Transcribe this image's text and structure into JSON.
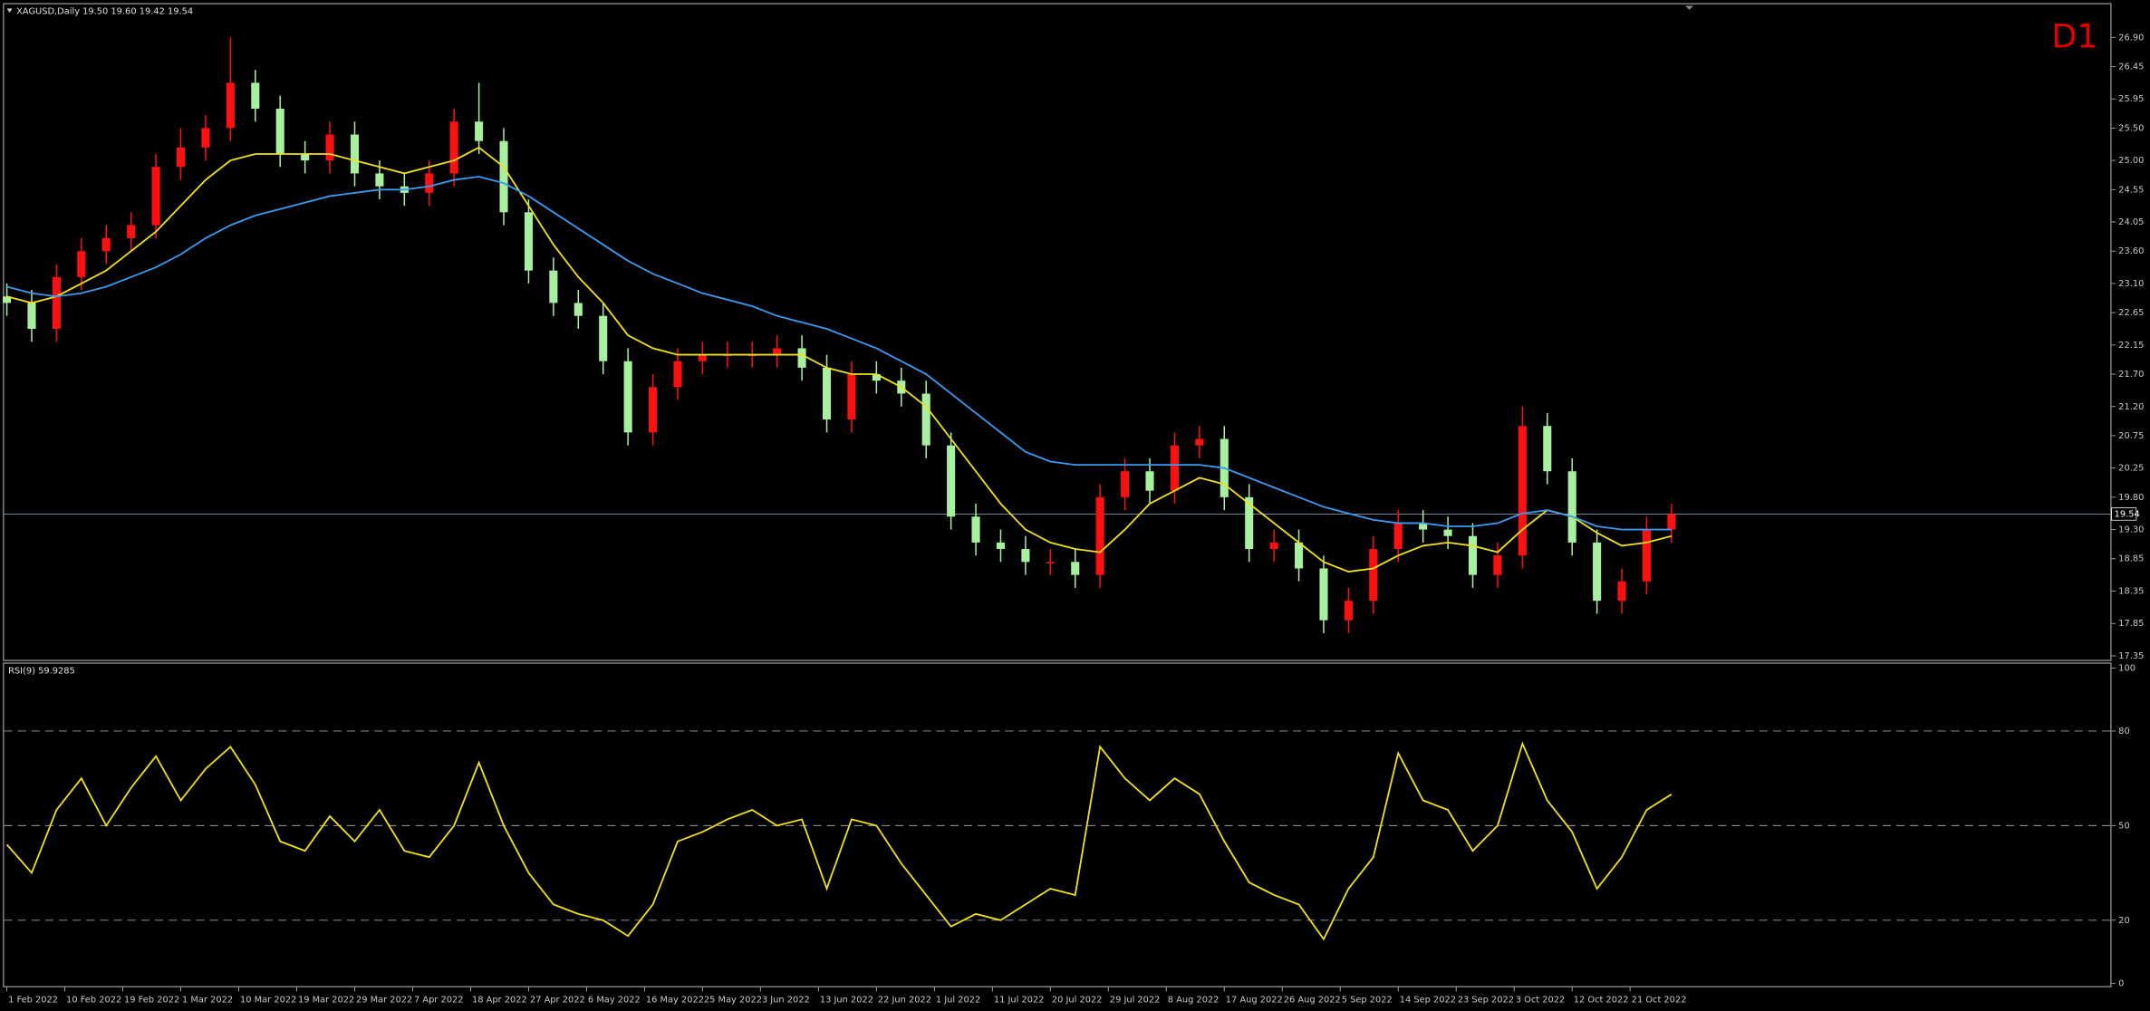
{
  "chart_data": [
    {
      "type": "candlestick",
      "title": "XAGUSD,Daily  19.50 19.60 19.42 19.54",
      "annotation": "D1",
      "xlim": [
        -0.8,
        253
      ],
      "xticks": [
        {
          "value": 0,
          "label": "1 Feb 2022"
        },
        {
          "value": 7,
          "label": "10 Feb 2022"
        },
        {
          "value": 14,
          "label": "19 Feb 2022"
        },
        {
          "value": 21,
          "label": "1 Mar 2022"
        },
        {
          "value": 28,
          "label": "10 Mar 2022"
        },
        {
          "value": 35,
          "label": "19 Mar 2022"
        },
        {
          "value": 42,
          "label": "29 Mar 2022"
        },
        {
          "value": 49,
          "label": "7 Apr 2022"
        },
        {
          "value": 56,
          "label": "18 Apr 2022"
        },
        {
          "value": 63,
          "label": "27 Apr 2022"
        },
        {
          "value": 70,
          "label": "6 May 2022"
        },
        {
          "value": 77,
          "label": "16 May 2022"
        },
        {
          "value": 84,
          "label": "25 May 2022"
        },
        {
          "value": 91,
          "label": "3 Jun 2022"
        },
        {
          "value": 98,
          "label": "13 Jun 2022"
        },
        {
          "value": 105,
          "label": "22 Jun 2022"
        },
        {
          "value": 112,
          "label": "1 Jul 2022"
        },
        {
          "value": 119,
          "label": "11 Jul 2022"
        },
        {
          "value": 126,
          "label": "20 Jul 2022"
        },
        {
          "value": 133,
          "label": "29 Jul 2022"
        },
        {
          "value": 140,
          "label": "8 Aug 2022"
        },
        {
          "value": 147,
          "label": "17 Aug 2022"
        },
        {
          "value": 154,
          "label": "26 Aug 2022"
        },
        {
          "value": 161,
          "label": "5 Sep 2022"
        },
        {
          "value": 168,
          "label": "14 Sep 2022"
        },
        {
          "value": 175,
          "label": "23 Sep 2022"
        },
        {
          "value": 182,
          "label": "3 Oct 2022"
        },
        {
          "value": 189,
          "label": "12 Oct 2022"
        },
        {
          "value": 196,
          "label": "21 Oct 2022"
        }
      ],
      "ylim": [
        17.29,
        27.41
      ],
      "yticks": [
        {
          "value": 26.9,
          "label": "26.90"
        },
        26.45,
        25.95,
        {
          "value": 25.5,
          "label": "25.50"
        },
        {
          "value": 25.0,
          "label": "25.00"
        },
        24.55,
        24.05,
        {
          "value": 23.6,
          "label": "23.60"
        },
        {
          "value": 23.1,
          "label": "23.10"
        },
        22.65,
        22.15,
        {
          "value": 21.7,
          "label": "21.70"
        },
        {
          "value": 21.2,
          "label": "21.20"
        },
        20.75,
        20.25,
        {
          "value": 19.8,
          "label": "19.80"
        },
        {
          "value": 19.3,
          "label": "19.30"
        },
        18.85,
        18.35,
        17.85,
        17.35
      ],
      "last_price": 19.54,
      "up_color": "#ff1010",
      "down_color": "#a8f0a0",
      "x": [
        0,
        3,
        6,
        9,
        12,
        15,
        18,
        21,
        24,
        27,
        30,
        33,
        36,
        39,
        42,
        45,
        48,
        51,
        54,
        57,
        60,
        63,
        66,
        69,
        72,
        75,
        78,
        81,
        84,
        87,
        90,
        93,
        96,
        99,
        102,
        105,
        108,
        111,
        114,
        117,
        120,
        123,
        126,
        129,
        132,
        135,
        138,
        141,
        144,
        147,
        150,
        153,
        156,
        159,
        162,
        165,
        168,
        171,
        174,
        177,
        180,
        183,
        186,
        189,
        192,
        195,
        198,
        201
      ],
      "open": [
        22.9,
        22.8,
        22.4,
        23.2,
        23.6,
        23.8,
        24.0,
        24.9,
        25.2,
        25.5,
        26.2,
        25.8,
        25.1,
        25.0,
        25.4,
        24.8,
        24.6,
        24.5,
        24.8,
        25.6,
        25.3,
        24.2,
        23.3,
        22.8,
        22.6,
        21.9,
        20.8,
        21.5,
        21.9,
        22.0,
        22.0,
        22.0,
        22.1,
        21.8,
        21.0,
        21.7,
        21.6,
        21.4,
        20.6,
        19.5,
        19.1,
        19.0,
        18.8,
        18.8,
        18.6,
        19.8,
        20.2,
        19.9,
        20.6,
        20.7,
        19.8,
        19.0,
        19.1,
        18.7,
        17.9,
        18.2,
        19.0,
        19.4,
        19.3,
        19.2,
        18.6,
        18.9,
        20.9,
        20.2,
        19.1,
        18.2,
        18.5,
        19.3
      ],
      "high": [
        23.1,
        23.0,
        23.4,
        23.8,
        24.0,
        24.2,
        25.1,
        25.5,
        25.7,
        26.9,
        26.4,
        26.0,
        25.3,
        25.6,
        25.6,
        25.0,
        24.8,
        25.0,
        25.8,
        26.2,
        25.5,
        24.4,
        23.5,
        23.0,
        22.8,
        22.1,
        21.7,
        22.1,
        22.2,
        22.2,
        22.2,
        22.3,
        22.3,
        22.0,
        21.9,
        21.9,
        21.8,
        21.6,
        20.8,
        19.7,
        19.3,
        19.2,
        19.0,
        19.0,
        20.0,
        20.4,
        20.4,
        20.8,
        20.9,
        20.9,
        20.0,
        19.3,
        19.3,
        18.9,
        18.4,
        19.2,
        19.6,
        19.6,
        19.5,
        19.4,
        19.1,
        21.2,
        21.1,
        20.4,
        19.3,
        18.7,
        19.5,
        19.7
      ],
      "low": [
        22.6,
        22.2,
        22.2,
        23.0,
        23.4,
        23.6,
        23.8,
        24.7,
        25.0,
        25.3,
        25.6,
        24.9,
        24.8,
        24.8,
        24.6,
        24.4,
        24.3,
        24.3,
        24.6,
        25.1,
        24.0,
        23.1,
        22.6,
        22.4,
        21.7,
        20.6,
        20.6,
        21.3,
        21.7,
        21.8,
        21.8,
        21.8,
        21.6,
        20.8,
        20.8,
        21.4,
        21.2,
        20.4,
        19.3,
        18.9,
        18.8,
        18.6,
        18.6,
        18.4,
        18.4,
        19.6,
        19.7,
        19.7,
        20.4,
        19.6,
        18.8,
        18.8,
        18.5,
        17.7,
        17.7,
        18.0,
        18.8,
        19.1,
        19.0,
        18.4,
        18.4,
        18.7,
        20.0,
        18.9,
        18.0,
        18.0,
        18.3,
        19.1
      ],
      "close": [
        22.8,
        22.4,
        23.2,
        23.6,
        23.8,
        24.0,
        24.9,
        25.2,
        25.5,
        26.2,
        25.8,
        25.1,
        25.0,
        25.4,
        24.8,
        24.6,
        24.5,
        24.8,
        25.6,
        25.3,
        24.2,
        23.3,
        22.8,
        22.6,
        21.9,
        20.8,
        21.5,
        21.9,
        22.0,
        22.0,
        22.0,
        22.1,
        21.8,
        21.0,
        21.7,
        21.6,
        21.4,
        20.6,
        19.5,
        19.1,
        19.0,
        18.8,
        18.8,
        18.6,
        19.8,
        20.2,
        19.9,
        20.6,
        20.7,
        19.8,
        19.0,
        19.1,
        18.7,
        17.9,
        18.2,
        19.0,
        19.4,
        19.3,
        19.2,
        18.6,
        18.9,
        20.9,
        20.2,
        19.1,
        18.2,
        18.5,
        19.3,
        19.54
      ],
      "series": [
        {
          "color": "#f0e020",
          "values": [
            22.9,
            22.8,
            22.9,
            23.1,
            23.3,
            23.6,
            23.9,
            24.3,
            24.7,
            25.0,
            25.1,
            25.1,
            25.1,
            25.1,
            25.0,
            24.9,
            24.8,
            24.9,
            25.0,
            25.2,
            24.9,
            24.3,
            23.7,
            23.2,
            22.8,
            22.3,
            22.1,
            22.0,
            22.0,
            22.0,
            22.0,
            22.0,
            22.0,
            21.8,
            21.7,
            21.7,
            21.5,
            21.2,
            20.7,
            20.2,
            19.7,
            19.3,
            19.1,
            19.0,
            18.95,
            19.3,
            19.7,
            19.9,
            20.1,
            20.0,
            19.7,
            19.4,
            19.1,
            18.8,
            18.65,
            18.7,
            18.9,
            19.05,
            19.1,
            19.05,
            18.95,
            19.3,
            19.6,
            19.5,
            19.25,
            19.05,
            19.1,
            19.2
          ]
        },
        {
          "color": "#3a9af0",
          "values": [
            23.05,
            22.95,
            22.9,
            22.95,
            23.05,
            23.2,
            23.35,
            23.55,
            23.8,
            24.0,
            24.15,
            24.25,
            24.35,
            24.45,
            24.5,
            24.55,
            24.55,
            24.6,
            24.7,
            24.75,
            24.65,
            24.45,
            24.2,
            23.95,
            23.7,
            23.45,
            23.25,
            23.1,
            22.95,
            22.85,
            22.75,
            22.6,
            22.5,
            22.4,
            22.25,
            22.1,
            21.9,
            21.7,
            21.4,
            21.1,
            20.8,
            20.5,
            20.35,
            20.3,
            20.3,
            20.3,
            20.3,
            20.3,
            20.3,
            20.25,
            20.1,
            19.95,
            19.8,
            19.65,
            19.55,
            19.45,
            19.4,
            19.4,
            19.35,
            19.35,
            19.4,
            19.55,
            19.6,
            19.5,
            19.35,
            19.3,
            19.3,
            19.3
          ]
        }
      ]
    },
    {
      "type": "line",
      "title": "RSI(9) 59.9285",
      "ylim": [
        0,
        100
      ],
      "yticks": [
        100,
        80,
        50,
        20,
        0
      ],
      "levels": [
        80,
        50,
        20
      ],
      "x": [
        0,
        3,
        6,
        9,
        12,
        15,
        18,
        21,
        24,
        27,
        30,
        33,
        36,
        39,
        42,
        45,
        48,
        51,
        54,
        57,
        60,
        63,
        66,
        69,
        72,
        75,
        78,
        81,
        84,
        87,
        90,
        93,
        96,
        99,
        102,
        105,
        108,
        111,
        114,
        117,
        120,
        123,
        126,
        129,
        132,
        135,
        138,
        141,
        144,
        147,
        150,
        153,
        156,
        159,
        162,
        165,
        168,
        171,
        174,
        177,
        180,
        183,
        186,
        189,
        192,
        195,
        198,
        201
      ],
      "series": [
        {
          "color": "#f0e020",
          "values": [
            44,
            35,
            55,
            65,
            50,
            62,
            72,
            58,
            68,
            75,
            63,
            45,
            42,
            53,
            45,
            55,
            42,
            40,
            50,
            70,
            50,
            35,
            25,
            22,
            20,
            15,
            25,
            45,
            48,
            52,
            55,
            50,
            52,
            30,
            52,
            50,
            38,
            28,
            18,
            22,
            20,
            25,
            30,
            28,
            75,
            65,
            58,
            65,
            60,
            45,
            32,
            28,
            25,
            14,
            30,
            40,
            73,
            58,
            55,
            42,
            50,
            76,
            58,
            48,
            30,
            40,
            55,
            59.93
          ]
        }
      ]
    }
  ]
}
